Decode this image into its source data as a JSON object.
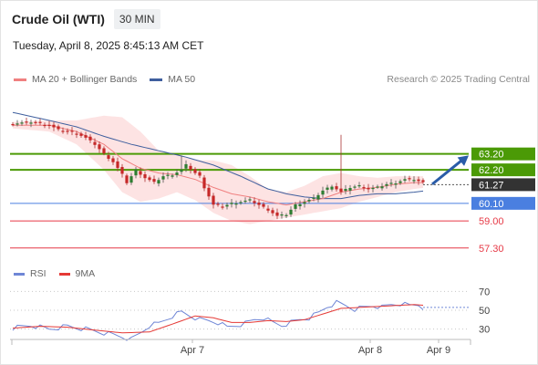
{
  "header": {
    "instrument": "Crude Oil (WTI)",
    "timeframe": "30 MIN",
    "datetime": "Tuesday, April 8, 2025 8:45:13 AM CET",
    "attribution": "Research © 2025 Trading Central"
  },
  "colors": {
    "ma20": "#f08080",
    "ma50": "#3f5f9e",
    "band_fill": "#fcdada",
    "resistance": "#4b9a06",
    "support": "#4a7fe0",
    "target": "#e63946",
    "bull": "#2e7d32",
    "bear": "#c62828",
    "rsi": "#6f86d6",
    "rsi_ma": "#e53935",
    "arrow": "#2a5ca8",
    "current": "#333333"
  },
  "chart_data": [
    {
      "type": "candlestick",
      "legend": [
        {
          "name": "MA 20 + Bollinger Bands",
          "color": "#f08080"
        },
        {
          "name": "MA 50",
          "color": "#3f5f9e"
        }
      ],
      "x_ticks": [
        {
          "label": "Apr 7",
          "index": 39
        },
        {
          "label": "Apr 8",
          "index": 78
        },
        {
          "label": "Apr 9",
          "index": 93
        }
      ],
      "ylim": [
        56.2,
        66.5
      ],
      "n_bars": 91,
      "levels": [
        {
          "value": 63.2,
          "label": "63.20",
          "kind": "resistance"
        },
        {
          "value": 62.2,
          "label": "62.20",
          "kind": "resistance"
        },
        {
          "value": 61.27,
          "label": "61.27",
          "kind": "current"
        },
        {
          "value": 60.1,
          "label": "60.10",
          "kind": "support"
        },
        {
          "value": 59.0,
          "label": "59.00",
          "kind": "target"
        },
        {
          "value": 57.3,
          "label": "57.30",
          "kind": "target"
        }
      ],
      "arrow": {
        "from_index": 92,
        "from_value": 61.3,
        "to_index": 100,
        "to_value": 63.1
      },
      "anchors": {
        "close": [
          [
            0,
            65.1
          ],
          [
            4,
            65.2
          ],
          [
            6,
            65.1
          ],
          [
            8,
            65.0
          ],
          [
            10,
            64.7
          ],
          [
            14,
            64.5
          ],
          [
            16,
            64.2
          ],
          [
            18,
            63.8
          ],
          [
            20,
            63.2
          ],
          [
            22,
            62.7
          ],
          [
            24,
            61.9
          ],
          [
            25,
            61.4
          ],
          [
            27,
            62.2
          ],
          [
            29,
            61.7
          ],
          [
            31,
            61.4
          ],
          [
            33,
            61.8
          ],
          [
            35,
            61.9
          ],
          [
            37,
            62.2
          ],
          [
            38,
            62.5
          ],
          [
            40,
            62.0
          ],
          [
            41,
            61.8
          ],
          [
            42,
            61.1
          ],
          [
            44,
            60.0
          ],
          [
            46,
            59.9
          ],
          [
            48,
            60.1
          ],
          [
            50,
            60.2
          ],
          [
            52,
            60.3
          ],
          [
            54,
            60.0
          ],
          [
            56,
            59.7
          ],
          [
            58,
            59.3
          ],
          [
            60,
            59.4
          ],
          [
            62,
            60.0
          ],
          [
            64,
            60.2
          ],
          [
            66,
            60.4
          ],
          [
            68,
            60.9
          ],
          [
            70,
            61.2
          ],
          [
            72,
            60.8
          ],
          [
            74,
            61.1
          ],
          [
            76,
            61.2
          ],
          [
            78,
            61.0
          ],
          [
            80,
            61.1
          ],
          [
            82,
            61.3
          ],
          [
            84,
            61.4
          ],
          [
            86,
            61.6
          ],
          [
            88,
            61.6
          ],
          [
            90,
            61.4
          ],
          [
            91,
            61.3
          ]
        ],
        "ma20": [
          [
            0,
            65.0
          ],
          [
            8,
            65.0
          ],
          [
            14,
            64.6
          ],
          [
            20,
            63.8
          ],
          [
            24,
            62.9
          ],
          [
            28,
            62.3
          ],
          [
            32,
            62.0
          ],
          [
            36,
            61.9
          ],
          [
            40,
            61.6
          ],
          [
            44,
            61.1
          ],
          [
            48,
            60.7
          ],
          [
            52,
            60.5
          ],
          [
            56,
            60.2
          ],
          [
            60,
            60.0
          ],
          [
            64,
            60.2
          ],
          [
            68,
            60.4
          ],
          [
            72,
            60.8
          ],
          [
            76,
            61.0
          ],
          [
            80,
            61.1
          ],
          [
            84,
            61.3
          ],
          [
            88,
            61.4
          ],
          [
            91,
            61.4
          ]
        ],
        "ma50": [
          [
            0,
            65.8
          ],
          [
            8,
            65.3
          ],
          [
            14,
            64.9
          ],
          [
            20,
            64.3
          ],
          [
            26,
            63.8
          ],
          [
            32,
            63.4
          ],
          [
            38,
            63.0
          ],
          [
            44,
            62.5
          ],
          [
            50,
            61.8
          ],
          [
            56,
            61.0
          ],
          [
            60,
            60.7
          ],
          [
            64,
            60.5
          ],
          [
            68,
            60.4
          ],
          [
            72,
            60.4
          ],
          [
            76,
            60.6
          ],
          [
            80,
            60.7
          ],
          [
            84,
            60.7
          ],
          [
            88,
            60.8
          ],
          [
            91,
            60.9
          ]
        ],
        "bb_upper": [
          [
            0,
            65.2
          ],
          [
            8,
            65.3
          ],
          [
            14,
            65.3
          ],
          [
            20,
            65.6
          ],
          [
            24,
            65.5
          ],
          [
            28,
            64.6
          ],
          [
            32,
            63.4
          ],
          [
            36,
            63.2
          ],
          [
            40,
            62.8
          ],
          [
            44,
            62.8
          ],
          [
            48,
            62.5
          ],
          [
            52,
            61.8
          ],
          [
            56,
            61.0
          ],
          [
            60,
            60.8
          ],
          [
            64,
            61.2
          ],
          [
            68,
            61.8
          ],
          [
            72,
            62.0
          ],
          [
            76,
            61.8
          ],
          [
            80,
            61.7
          ],
          [
            84,
            61.8
          ],
          [
            88,
            61.8
          ],
          [
            91,
            61.8
          ]
        ],
        "bb_lower": [
          [
            0,
            64.8
          ],
          [
            8,
            64.6
          ],
          [
            14,
            63.8
          ],
          [
            20,
            62.2
          ],
          [
            24,
            60.8
          ],
          [
            28,
            60.2
          ],
          [
            32,
            60.4
          ],
          [
            36,
            60.8
          ],
          [
            40,
            60.3
          ],
          [
            44,
            59.5
          ],
          [
            48,
            59.0
          ],
          [
            52,
            58.8
          ],
          [
            56,
            59.0
          ],
          [
            60,
            59.2
          ],
          [
            64,
            59.4
          ],
          [
            68,
            59.6
          ],
          [
            72,
            59.8
          ],
          [
            76,
            60.2
          ],
          [
            80,
            60.5
          ],
          [
            84,
            60.8
          ],
          [
            88,
            61.0
          ],
          [
            91,
            61.1
          ]
        ]
      },
      "spikes": [
        [
          37,
          62.2,
          63.1
        ],
        [
          72,
          60.8,
          64.4
        ]
      ]
    },
    {
      "type": "line",
      "name": "RSI",
      "legend": [
        {
          "name": "RSI",
          "color": "#6f86d6"
        },
        {
          "name": "9MA",
          "color": "#e53935"
        }
      ],
      "ylim": [
        20,
        80
      ],
      "y_ticks": [
        70,
        50,
        30
      ],
      "anchors": {
        "rsi": [
          [
            0,
            31
          ],
          [
            4,
            34
          ],
          [
            8,
            30
          ],
          [
            12,
            33
          ],
          [
            16,
            30
          ],
          [
            20,
            26
          ],
          [
            24,
            22
          ],
          [
            26,
            19
          ],
          [
            28,
            26
          ],
          [
            30,
            34
          ],
          [
            32,
            36
          ],
          [
            35,
            44
          ],
          [
            37,
            48
          ],
          [
            39,
            44
          ],
          [
            41,
            40
          ],
          [
            43,
            39
          ],
          [
            45,
            37
          ],
          [
            47,
            32
          ],
          [
            49,
            34
          ],
          [
            51,
            36
          ],
          [
            53,
            40
          ],
          [
            55,
            42
          ],
          [
            57,
            37
          ],
          [
            59,
            34
          ],
          [
            61,
            37
          ],
          [
            63,
            40
          ],
          [
            65,
            42
          ],
          [
            67,
            47
          ],
          [
            69,
            54
          ],
          [
            71,
            58
          ],
          [
            73,
            55
          ],
          [
            75,
            51
          ],
          [
            77,
            53
          ],
          [
            79,
            55
          ],
          [
            81,
            53
          ],
          [
            83,
            56
          ],
          [
            85,
            57
          ],
          [
            87,
            55
          ],
          [
            89,
            56
          ],
          [
            91,
            50
          ]
        ],
        "rsi_ma": [
          [
            0,
            31
          ],
          [
            6,
            33
          ],
          [
            12,
            32
          ],
          [
            18,
            29
          ],
          [
            24,
            26
          ],
          [
            30,
            27
          ],
          [
            36,
            37
          ],
          [
            40,
            44
          ],
          [
            44,
            42
          ],
          [
            48,
            37
          ],
          [
            52,
            37
          ],
          [
            56,
            39
          ],
          [
            60,
            38
          ],
          [
            64,
            40
          ],
          [
            68,
            46
          ],
          [
            72,
            52
          ],
          [
            76,
            53
          ],
          [
            80,
            54
          ],
          [
            84,
            55
          ],
          [
            88,
            56
          ],
          [
            91,
            55
          ]
        ]
      }
    }
  ]
}
